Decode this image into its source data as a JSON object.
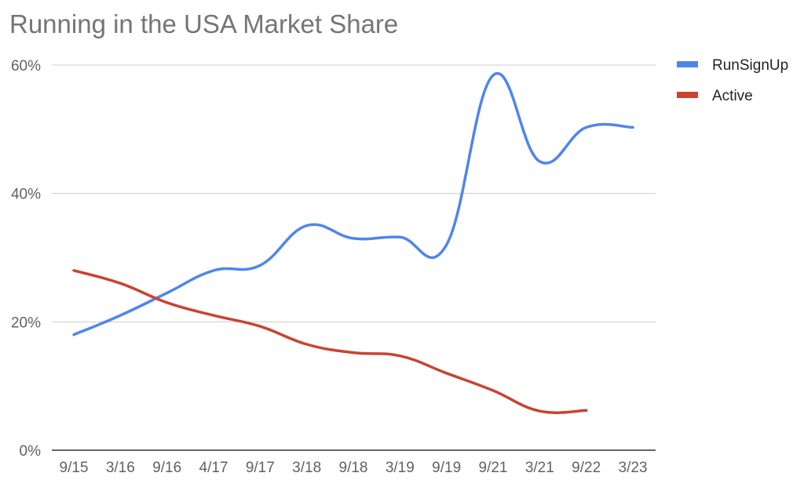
{
  "chart_data": {
    "type": "line",
    "title": "Running in the USA Market Share",
    "xlabel": "",
    "ylabel": "",
    "categories": [
      "9/15",
      "3/16",
      "9/16",
      "4/17",
      "9/17",
      "3/18",
      "9/18",
      "3/19",
      "9/19",
      "9/21",
      "3/21",
      "9/22",
      "3/23"
    ],
    "y_ticks": [
      "0%",
      "20%",
      "40%",
      "60%"
    ],
    "ylim": [
      0,
      60
    ],
    "grid": true,
    "legend_position": "right",
    "series": [
      {
        "name": "RunSignUp",
        "color": "#4f86ec",
        "values": [
          18,
          21,
          24.5,
          28,
          28.8,
          35,
          33,
          33.2,
          32,
          58.4,
          45,
          50.3,
          50.3
        ]
      },
      {
        "name": "Active",
        "color": "#c94430",
        "values": [
          28,
          26,
          23,
          21,
          19.3,
          16.5,
          15.2,
          14.7,
          12,
          9.3,
          6.1,
          6.2,
          null
        ]
      }
    ]
  }
}
